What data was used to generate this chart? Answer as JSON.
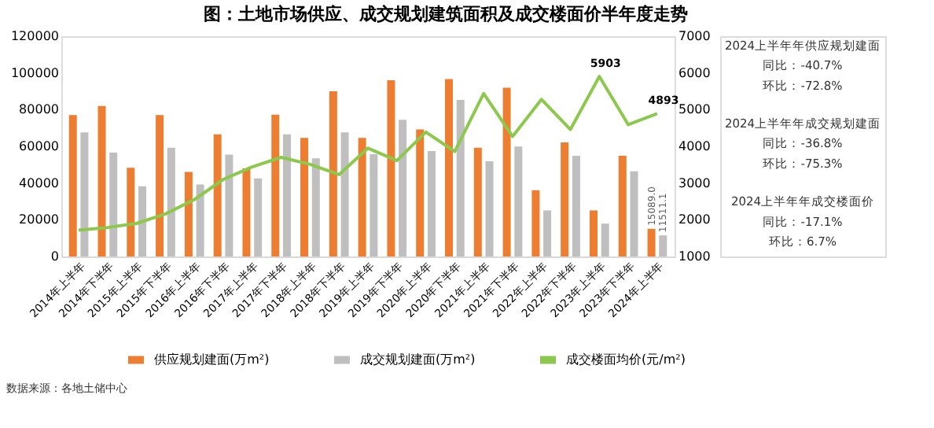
{
  "chart_data": {
    "type": "bar",
    "title": "图：土地市场供应、成交规划建筑面积及成交楼面价半年度走势",
    "categories": [
      "2014年上半年",
      "2014年下半年",
      "2015年上半年",
      "2015年下半年",
      "2016年上半年",
      "2016年下半年",
      "2017年上半年",
      "2017年下半年",
      "2018年上半年",
      "2018年下半年",
      "2019年上半年",
      "2019年下半年",
      "2020年上半年",
      "2020年下半年",
      "2021年上半年",
      "2021年下半年",
      "2022年上半年",
      "2022年下半年",
      "2023年上半年",
      "2023年下半年",
      "2024年上半年"
    ],
    "series": [
      {
        "name": "供应规划建面(万m²)",
        "color": "#ed7d31",
        "values": [
          77000,
          82000,
          48300,
          77000,
          46100,
          66500,
          48000,
          77300,
          64600,
          90000,
          64600,
          96000,
          69200,
          96600,
          59300,
          91900,
          36100,
          62100,
          25100,
          54900,
          15089.0
        ],
        "value_labels": [
          null,
          null,
          null,
          null,
          null,
          null,
          null,
          null,
          null,
          null,
          null,
          null,
          null,
          null,
          null,
          null,
          null,
          null,
          null,
          null,
          "15089.0"
        ]
      },
      {
        "name": "成交规划建面(万m²)",
        "color": "#bfbfbf",
        "values": [
          67600,
          56600,
          38300,
          59300,
          39200,
          55500,
          42500,
          66500,
          53500,
          67600,
          55700,
          74500,
          57400,
          85300,
          51900,
          59900,
          25100,
          54900,
          17900,
          46400,
          11511.1
        ],
        "value_labels": [
          null,
          null,
          null,
          null,
          null,
          null,
          null,
          null,
          null,
          null,
          null,
          null,
          null,
          null,
          null,
          null,
          null,
          null,
          null,
          null,
          "11511.1"
        ]
      },
      {
        "name": "成交楼面均价(元/m²)",
        "color": "#8cc84b",
        "type": "line",
        "axis": "y2",
        "values": [
          1720,
          1790,
          1900,
          2160,
          2550,
          3100,
          3440,
          3700,
          3510,
          3230,
          3950,
          3610,
          4390,
          3860,
          5440,
          4270,
          5280,
          4460,
          5903,
          4590,
          4893
        ],
        "value_labels": [
          null,
          null,
          null,
          null,
          null,
          null,
          null,
          null,
          null,
          null,
          null,
          null,
          null,
          null,
          null,
          null,
          null,
          null,
          "5903",
          null,
          "4893"
        ]
      }
    ],
    "ylim": [
      0,
      120000
    ],
    "yticks": [
      0,
      20000,
      40000,
      60000,
      80000,
      100000,
      120000
    ],
    "y2lim": [
      1000,
      7000
    ],
    "y2ticks": [
      1000,
      2000,
      3000,
      4000,
      5000,
      6000,
      7000
    ],
    "grid": false,
    "legend": "bottom",
    "line_style": "solid",
    "marker": "none",
    "annotations": [
      "2024上半年年供应规划建面",
      "同比：-40.7%",
      "环比：-72.8%",
      "2024上半年年成交规划建面",
      "同比：-36.8%",
      "环比：-75.3%",
      "2024上半年年成交楼面价",
      "同比：-17.1%",
      "环比：6.7%",
      "数据来源：各地土储中心"
    ]
  }
}
